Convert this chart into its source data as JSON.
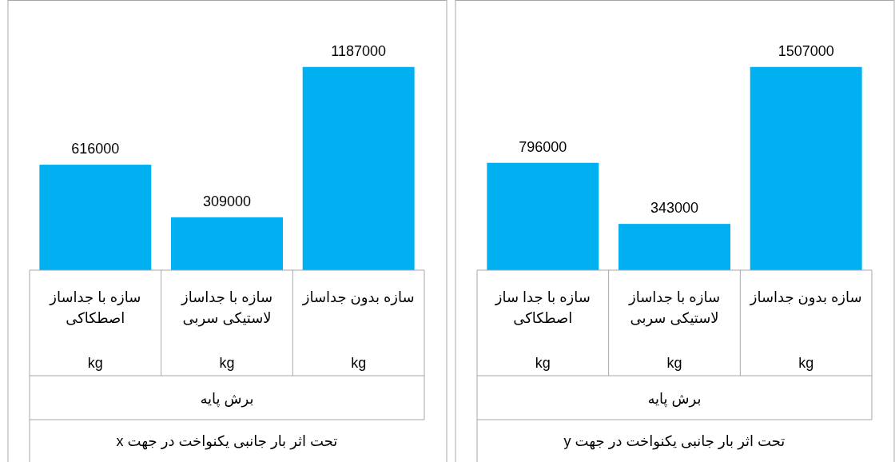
{
  "chart_data": [
    {
      "type": "bar",
      "categories": [
        "سازه با جداساز اصطکاکی",
        "سازه با جداساز لاستیکی سربی",
        "سازه بدون جداساز"
      ],
      "series": [
        {
          "color": "#00b0f0",
          "values": [
            616000,
            309000,
            1187000
          ]
        }
      ],
      "data_labels": true,
      "annotations": [
        "kg",
        "kg",
        "kg",
        "برش پایه"
      ],
      "xlabel": "تحت اثر بار جانبی یکنواخت در جهت x"
    },
    {
      "type": "bar",
      "categories": [
        "سازه با جدا ساز اصطکاکی",
        "سازه با جداساز لاستیکی سربی",
        "سازه بدون جداساز"
      ],
      "series": [
        {
          "color": "#00b0f0",
          "values": [
            796000,
            343000,
            1507000
          ]
        }
      ],
      "data_labels": true,
      "annotations": [
        "kg",
        "kg",
        "kg",
        "برش پایه"
      ],
      "xlabel": "تحت اثر بار جانبی یکنواخت در جهت y"
    }
  ]
}
